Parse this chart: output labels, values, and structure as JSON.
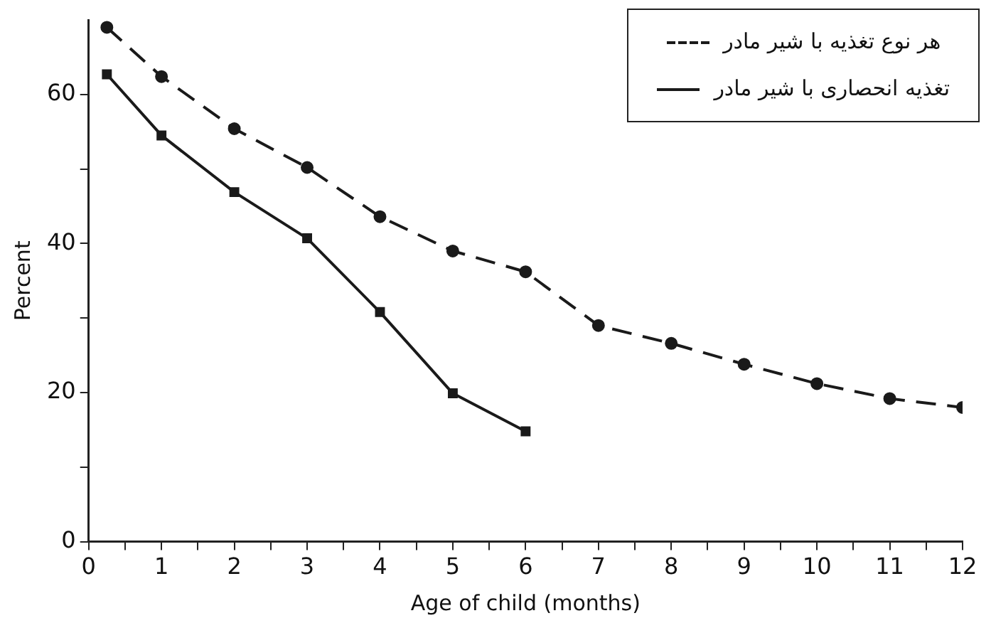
{
  "chart_data": {
    "type": "line",
    "xlabel": "Age of child (months)",
    "ylabel": "Percent",
    "xlim": [
      0,
      12
    ],
    "xticks": [
      0,
      {
        "value": 0.5,
        "label": null
      },
      1,
      {
        "value": 1.5,
        "label": null
      },
      2,
      {
        "value": 2.5,
        "label": null
      },
      3,
      {
        "value": 3.5,
        "label": null
      },
      4,
      {
        "value": 4.5,
        "label": null
      },
      5,
      {
        "value": 5.5,
        "label": null
      },
      6,
      {
        "value": 6.5,
        "label": null
      },
      7,
      {
        "value": 7.5,
        "label": null
      },
      8,
      {
        "value": 8.5,
        "label": null
      },
      9,
      {
        "value": 9.5,
        "label": null
      },
      10,
      {
        "value": 10.5,
        "label": null
      },
      11,
      {
        "value": 11.5,
        "label": null
      },
      12
    ],
    "ylim": [
      0,
      70
    ],
    "yticks": [
      0,
      {
        "value": 10,
        "label": null
      },
      20,
      {
        "value": 30,
        "label": null
      },
      40,
      {
        "value": 50,
        "label": null
      },
      60
    ],
    "grid": false,
    "legend": "top right",
    "series": [
      {
        "name": "هر نوع تغذیه با شیر مادر",
        "color": "#1a1a1a",
        "line_style": "dashed",
        "marker": "circle",
        "x": [
          0.25,
          1,
          2,
          3,
          4,
          5,
          6,
          7,
          8,
          9,
          10,
          11,
          12
        ],
        "values": [
          69,
          62.4,
          55.4,
          50.2,
          43.6,
          39,
          36.2,
          29,
          26.6,
          23.8,
          21.2,
          19.2,
          18
        ]
      },
      {
        "name": "تغذیه انحصاری با شیر مادر",
        "color": "#1a1a1a",
        "line_style": "solid",
        "marker": "square",
        "x": [
          0.25,
          1,
          2,
          3,
          4,
          5,
          6
        ],
        "values": [
          62.7,
          54.5,
          46.9,
          40.7,
          30.8,
          19.9,
          14.8
        ]
      }
    ]
  }
}
